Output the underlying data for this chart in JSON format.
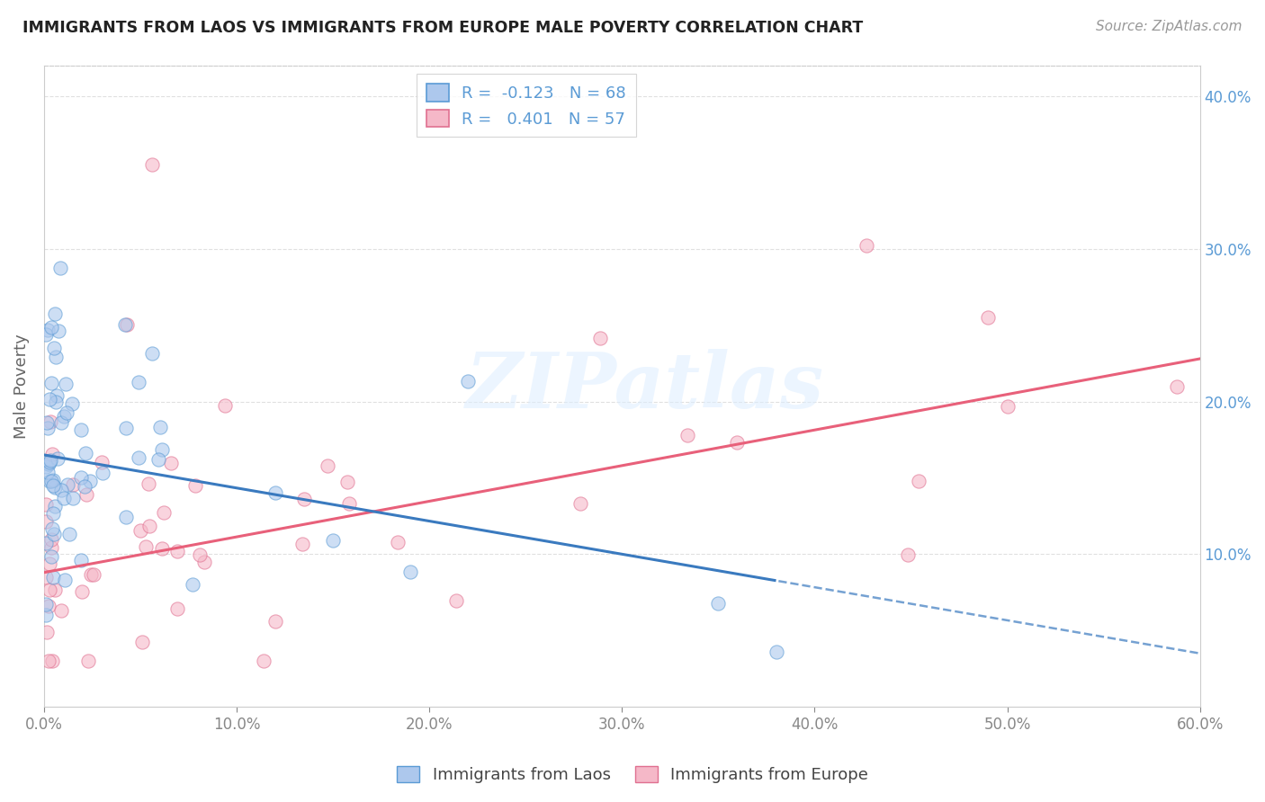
{
  "title": "IMMIGRANTS FROM LAOS VS IMMIGRANTS FROM EUROPE MALE POVERTY CORRELATION CHART",
  "source": "Source: ZipAtlas.com",
  "ylabel": "Male Poverty",
  "xlim": [
    0.0,
    0.6
  ],
  "ylim": [
    0.0,
    0.42
  ],
  "series1_label": "Immigrants from Laos",
  "series2_label": "Immigrants from Europe",
  "series1_color": "#adc8ed",
  "series2_color": "#f5b8c8",
  "series1_edge_color": "#5b9bd5",
  "series2_edge_color": "#e07090",
  "series1_line_color": "#3a7abf",
  "series2_line_color": "#e8607a",
  "series1_R": -0.123,
  "series1_N": 68,
  "series2_R": 0.401,
  "series2_N": 57,
  "watermark": "ZIPatlas",
  "background_color": "#ffffff",
  "grid_color": "#dddddd",
  "ytick_color": "#5b9bd5",
  "xtick_color": "#888888",
  "reg_line1_x0": 0.0,
  "reg_line1_y0": 0.165,
  "reg_line1_x1": 0.6,
  "reg_line1_y1": 0.035,
  "reg_line2_x0": 0.0,
  "reg_line2_y0": 0.088,
  "reg_line2_x1": 0.6,
  "reg_line2_y1": 0.228
}
